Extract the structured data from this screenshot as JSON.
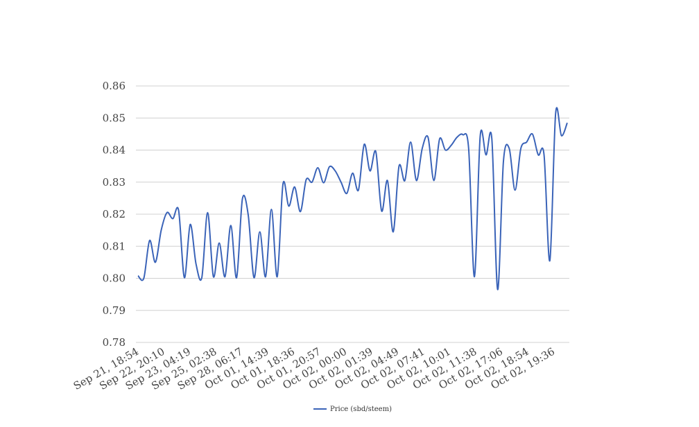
{
  "chart_data": {
    "type": "line",
    "title": "",
    "xlabel": "",
    "ylabel": "",
    "ylim": [
      0.78,
      0.86
    ],
    "yticks": [
      "0.78",
      "0.79",
      "0.80",
      "0.81",
      "0.82",
      "0.83",
      "0.84",
      "0.85",
      "0.86"
    ],
    "grid": true,
    "legend_position": "bottom-center",
    "x_tick_labels": [
      "Sep 21, 18:54",
      "Sep 22, 20:10",
      "Sep 23, 04:19",
      "Sep 25, 02:38",
      "Sep 28, 06:17",
      "Oct 01, 14:39",
      "Oct 01, 18:36",
      "Oct 01, 20:57",
      "Oct 02, 00:00",
      "Oct 02, 01:39",
      "Oct 02, 04:49",
      "Oct 02, 07:41",
      "Oct 02, 10:01",
      "Oct 02, 11:38",
      "Oct 02, 17:06",
      "Oct 02, 18:54",
      "Oct 02, 19:36"
    ],
    "series": [
      {
        "name": "Price (sbd/steem)",
        "color": "#3a63b8",
        "values": [
          0.8008,
          0.8,
          0.8118,
          0.805,
          0.815,
          0.8205,
          0.8186,
          0.8212,
          0.8002,
          0.8168,
          0.8045,
          0.8002,
          0.8205,
          0.8005,
          0.811,
          0.8005,
          0.8165,
          0.8002,
          0.8248,
          0.8198,
          0.8002,
          0.8145,
          0.8005,
          0.8215,
          0.8005,
          0.8295,
          0.8225,
          0.8285,
          0.8208,
          0.8308,
          0.83,
          0.8345,
          0.8298,
          0.8348,
          0.8335,
          0.83,
          0.8265,
          0.8328,
          0.8275,
          0.8418,
          0.8335,
          0.8395,
          0.821,
          0.8305,
          0.8145,
          0.835,
          0.8305,
          0.8425,
          0.8305,
          0.8405,
          0.844,
          0.8305,
          0.8435,
          0.84,
          0.8415,
          0.844,
          0.8448,
          0.8405,
          0.8005,
          0.8445,
          0.8385,
          0.8435,
          0.7965,
          0.8365,
          0.8405,
          0.8275,
          0.8405,
          0.8425,
          0.845,
          0.8385,
          0.8385,
          0.8055,
          0.8515,
          0.8445,
          0.8485
        ]
      }
    ]
  }
}
